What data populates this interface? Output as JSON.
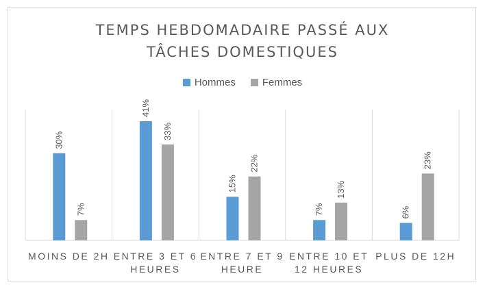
{
  "chart_data": {
    "type": "bar",
    "title_lines": [
      "TEMPS HEBDOMADAIRE PASSÉ AUX",
      "TÂCHES DOMESTIQUES"
    ],
    "categories": [
      [
        "MOINS DE 2H"
      ],
      [
        "ENTRE 3 ET 6",
        "HEURES"
      ],
      [
        "ENTRE 7 ET 9",
        "HEURE"
      ],
      [
        "ENTRE 10 ET",
        "12 HEURES"
      ],
      [
        "PLUS DE 12H"
      ]
    ],
    "series": [
      {
        "name": "Hommes",
        "color": "#5b9bd5",
        "values": [
          30,
          41,
          15,
          7,
          6
        ],
        "labels": [
          "30%",
          "41%",
          "15%",
          "7%",
          "6%"
        ]
      },
      {
        "name": "Femmes",
        "color": "#a5a5a5",
        "values": [
          7,
          33,
          22,
          13,
          23
        ],
        "labels": [
          "7%",
          "33%",
          "22%",
          "13%",
          "23%"
        ]
      }
    ],
    "ylim": [
      0,
      45
    ],
    "grid": false,
    "legend_position": "top"
  }
}
